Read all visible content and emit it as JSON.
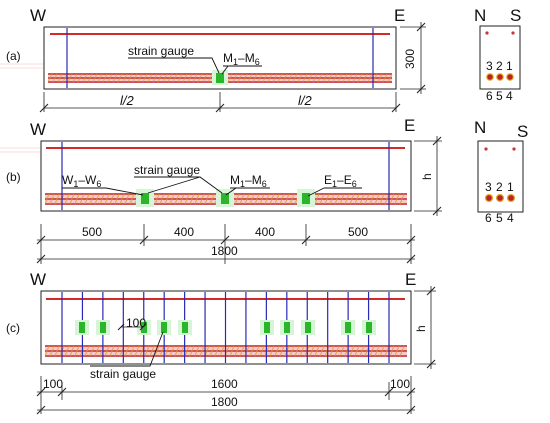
{
  "panels": {
    "a": {
      "label": "(a)",
      "west": "W",
      "east": "E",
      "gauge_label": "strain gauge",
      "gauge_group_main": "M",
      "gauge_group_sub_from": "1",
      "gauge_group_sub_to": "6",
      "height_dim": "300",
      "span_half_left": "l/2",
      "span_half_right": "l/2",
      "section": {
        "north": "N",
        "south": "S",
        "top_row": [
          "3",
          "2",
          "1"
        ],
        "bottom_row": [
          "6",
          "5",
          "4"
        ]
      }
    },
    "b": {
      "label": "(b)",
      "west": "W",
      "east": "E",
      "gauge_label": "strain gauge",
      "group_w": "W",
      "group_m": "M",
      "group_e": "E",
      "sub_from": "1",
      "sub_to": "6",
      "height_dim": "h",
      "segments": [
        "500",
        "400",
        "400",
        "500"
      ],
      "total": "1800",
      "section": {
        "north": "N",
        "south": "S",
        "top_row": [
          "3",
          "2",
          "1"
        ],
        "bottom_row": [
          "6",
          "5",
          "4"
        ]
      }
    },
    "c": {
      "label": "(c)",
      "west": "W",
      "east": "E",
      "spacing_label": "100",
      "gauge_label": "strain gauge",
      "height_dim": "h",
      "end_left": "100",
      "middle": "1600",
      "end_right": "100",
      "total": "1800"
    }
  },
  "colors": {
    "top_bar": "#d42a2a",
    "bottom_bar": "#c23030",
    "hatch": "#e39a2d",
    "stirrup": "#2a2ab4",
    "gauge": "#2bb52b"
  }
}
